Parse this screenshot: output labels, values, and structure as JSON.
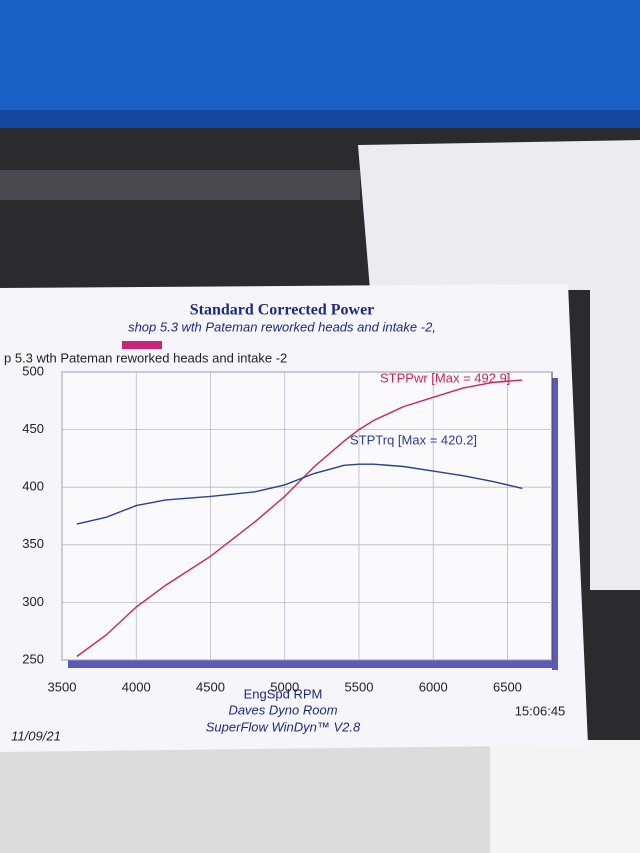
{
  "chart_data": {
    "type": "line",
    "title": "Standard Corrected Power",
    "subtitle": "shop 5.3 wth Pateman reworked heads and intake -2,",
    "header": "p 5.3 wth Pateman reworked heads and intake -2",
    "x_label": "EngSpd  RPM",
    "footer": [
      "Daves Dyno Room",
      "SuperFlow WinDyn™ V2.8"
    ],
    "time": "15:06:45",
    "date": "11/09/21",
    "x": [
      3600,
      3800,
      4000,
      4200,
      4500,
      4800,
      5000,
      5200,
      5400,
      5500,
      5600,
      5800,
      6000,
      6200,
      6400,
      6600
    ],
    "series": [
      {
        "name": "STPPwr [Max = 492.9]",
        "color": "#c8245a",
        "values": [
          253,
          272,
          296,
          315,
          340,
          370,
          392,
          418,
          440,
          450,
          458,
          470,
          478,
          486,
          491,
          493
        ]
      },
      {
        "name": "STPTrq [Max = 420.2]",
        "color": "#2a3f8f",
        "values": [
          368,
          374,
          384,
          389,
          392,
          396,
          402,
          412,
          419,
          420,
          420,
          418,
          414,
          410,
          405,
          399
        ]
      }
    ],
    "xlim": [
      3500,
      6800
    ],
    "xticks": [
      3500,
      4000,
      4500,
      5000,
      5500,
      6000,
      6500
    ],
    "ylim": [
      250,
      500
    ],
    "yticks": [
      250,
      300,
      350,
      400,
      450,
      500
    ],
    "grid": true
  }
}
